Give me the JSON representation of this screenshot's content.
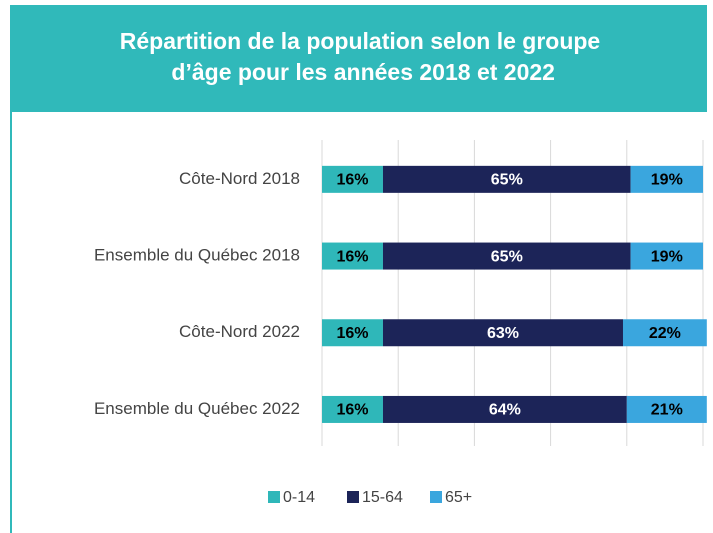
{
  "chart_data": {
    "type": "stacked-bar-horizontal",
    "title": "Répartition de la population selon le groupe d’âge pour les années 2018 et 2022",
    "categories": [
      "Côte-Nord 2018",
      "Ensemble du Québec 2018",
      "Côte-Nord 2022",
      "Ensemble du Québec 2022"
    ],
    "series": [
      {
        "name": "0-14",
        "color": "#2fb7b9",
        "label_color": "#000000",
        "values": [
          16,
          16,
          16,
          16
        ],
        "value_labels": [
          "16%",
          "16%",
          "16%",
          "16%"
        ]
      },
      {
        "name": "15-64",
        "color": "#1c2458",
        "label_color": "#ffffff",
        "values": [
          65,
          65,
          63,
          64
        ],
        "value_labels": [
          "65%",
          "65%",
          "63%",
          "64%"
        ]
      },
      {
        "name": "65+",
        "color": "#3aa6de",
        "label_color": "#000000",
        "values": [
          19,
          19,
          22,
          21
        ],
        "value_labels": [
          "19%",
          "19%",
          "22%",
          "21%"
        ]
      }
    ],
    "xlim": [
      0,
      100
    ],
    "xticks": [
      0,
      20,
      40,
      60,
      80,
      100
    ],
    "grid": true,
    "legend": "bottom"
  }
}
